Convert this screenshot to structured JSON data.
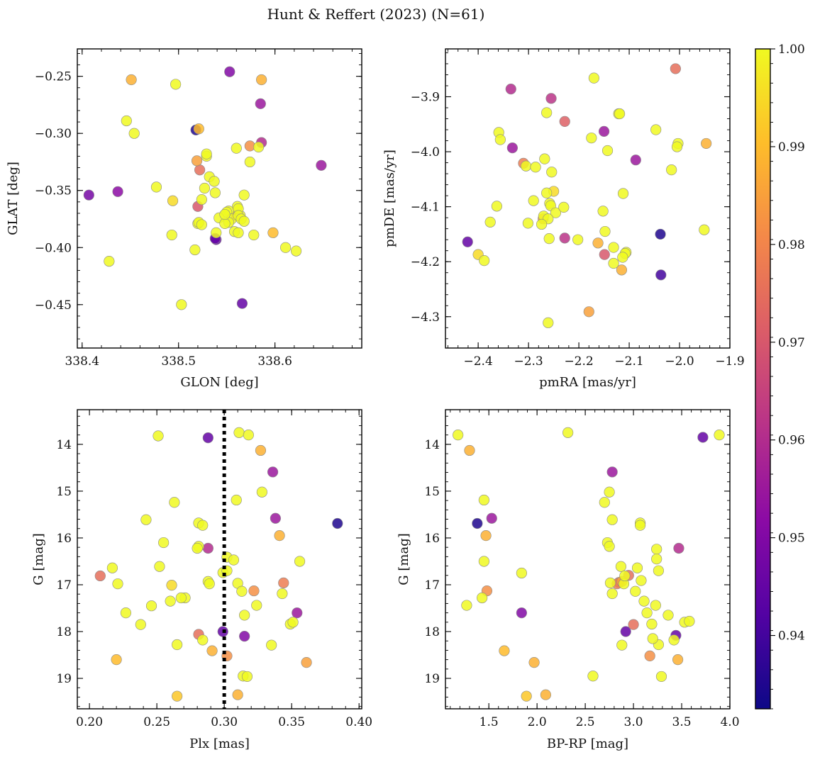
{
  "figure": {
    "title": "Hunt & Reffert (2023) (N=61)"
  },
  "colorbar": {
    "min": 0.9325,
    "max": 1.0,
    "ticks": [
      0.94,
      0.95,
      0.96,
      0.97,
      0.98,
      0.99,
      1.0
    ],
    "tick_labels": [
      "0.94",
      "0.95",
      "0.96",
      "0.97",
      "0.98",
      "0.99",
      "1.00"
    ],
    "colormap": "plasma",
    "colors": [
      "#0d0887",
      "#5302a3",
      "#8b0aa5",
      "#b83289",
      "#db5c68",
      "#f48849",
      "#febd2a",
      "#f0f921"
    ]
  },
  "chart_data": [
    {
      "type": "scatter",
      "xlabel": "GLON [deg]",
      "ylabel": "GLAT [deg]",
      "xlim": [
        338.395,
        338.69
      ],
      "ylim": [
        -0.488,
        -0.226
      ],
      "xticks": [
        338.4,
        338.5,
        338.6
      ],
      "xtick_labels": [
        "338.4",
        "338.5",
        "338.6"
      ],
      "yticks": [
        -0.25,
        -0.3,
        -0.35,
        -0.4,
        -0.45
      ],
      "ytick_labels": [
        "−0.25",
        "−0.30",
        "−0.35",
        "−0.40",
        "−0.45"
      ],
      "x": [
        338.553,
        338.451,
        338.586,
        338.497,
        338.446,
        338.585,
        338.454,
        338.518,
        338.521,
        338.586,
        338.574,
        338.529,
        338.583,
        338.519,
        338.522,
        338.529,
        338.532,
        338.574,
        338.648,
        338.527,
        338.56,
        338.524,
        338.561,
        338.564,
        338.407,
        338.437,
        338.477,
        338.537,
        338.494,
        338.52,
        338.568,
        338.538,
        338.552,
        338.562,
        338.56,
        338.55,
        338.542,
        338.555,
        338.562,
        338.565,
        338.568,
        338.552,
        338.548,
        338.558,
        338.539,
        338.539,
        338.52,
        338.521,
        338.524,
        338.548,
        338.562,
        338.578,
        338.598,
        338.611,
        338.622,
        338.538,
        338.566,
        338.493,
        338.517,
        338.428,
        338.503
      ],
      "y": [
        -0.246,
        -0.253,
        -0.253,
        -0.257,
        -0.289,
        -0.274,
        -0.3,
        -0.297,
        -0.296,
        -0.308,
        -0.311,
        -0.32,
        -0.312,
        -0.324,
        -0.332,
        -0.318,
        -0.338,
        -0.325,
        -0.328,
        -0.348,
        -0.313,
        -0.358,
        -0.364,
        -0.372,
        -0.354,
        -0.351,
        -0.347,
        -0.342,
        -0.359,
        -0.364,
        -0.354,
        -0.352,
        -0.368,
        -0.366,
        -0.372,
        -0.369,
        -0.374,
        -0.375,
        -0.372,
        -0.375,
        -0.377,
        -0.378,
        -0.379,
        -0.386,
        -0.387,
        -0.393,
        -0.379,
        -0.378,
        -0.38,
        -0.371,
        -0.387,
        -0.389,
        -0.387,
        -0.4,
        -0.403,
        -0.392,
        -0.449,
        -0.389,
        -0.402,
        -0.412,
        -0.45
      ],
      "c": [
        0.95,
        0.988,
        0.988,
        1.0,
        1.0,
        0.955,
        1.0,
        0.935,
        0.99,
        0.96,
        0.982,
        1.0,
        1.0,
        0.985,
        0.975,
        1.0,
        1.0,
        1.0,
        0.955,
        1.0,
        1.0,
        1.0,
        1.0,
        1.0,
        0.948,
        0.952,
        1.0,
        1.0,
        0.995,
        0.97,
        1.0,
        1.0,
        1.0,
        1.0,
        0.975,
        1.0,
        1.0,
        1.0,
        1.0,
        1.0,
        1.0,
        1.0,
        1.0,
        1.0,
        1.0,
        0.945,
        1.0,
        1.0,
        1.0,
        1.0,
        1.0,
        1.0,
        0.99,
        1.0,
        1.0,
        0.945,
        0.945,
        1.0,
        1.0,
        1.0,
        1.0
      ]
    },
    {
      "type": "scatter",
      "xlabel": "pmRA [mas/yr]",
      "ylabel": "pmDE [mas/yr]",
      "xlim": [
        -2.465,
        -1.9
      ],
      "ylim": [
        -4.357,
        -3.813
      ],
      "xticks": [
        -2.4,
        -2.3,
        -2.2,
        -2.1,
        -2.0,
        -1.9
      ],
      "xtick_labels": [
        "−2.4",
        "−2.3",
        "−2.2",
        "−2.1",
        "−2.0",
        "−1.9"
      ],
      "yticks": [
        -3.9,
        -4.0,
        -4.1,
        -4.2,
        -4.3
      ],
      "ytick_labels": [
        "−3.9",
        "−4.0",
        "−4.1",
        "−4.2",
        "−4.3"
      ],
      "x": [
        -2.008,
        -2.17,
        -2.335,
        -2.255,
        -2.121,
        -2.264,
        -2.119,
        -2.228,
        -2.15,
        -2.359,
        -2.356,
        -2.175,
        -2.047,
        -2.003,
        -2.005,
        -1.947,
        -2.143,
        -2.332,
        -2.268,
        -2.31,
        -2.305,
        -2.286,
        -2.254,
        -2.016,
        -2.087,
        -2.363,
        -2.264,
        -2.25,
        -2.258,
        -2.256,
        -2.29,
        -2.27,
        -2.112,
        -2.152,
        -2.246,
        -2.271,
        -2.23,
        -2.261,
        -2.274,
        -2.301,
        -2.376,
        -2.148,
        -2.228,
        -2.202,
        -2.259,
        -2.162,
        -2.131,
        -2.106,
        -2.108,
        -2.038,
        -1.951,
        -2.421,
        -2.4,
        -2.388,
        -2.149,
        -2.115,
        -2.131,
        -2.037,
        -2.113,
        -2.18,
        -2.261
      ],
      "y": [
        -3.849,
        -3.866,
        -3.886,
        -3.903,
        -3.931,
        -3.929,
        -3.931,
        -3.945,
        -3.963,
        -3.965,
        -3.978,
        -3.975,
        -3.96,
        -3.985,
        -3.991,
        -3.985,
        -3.998,
        -3.993,
        -4.013,
        -4.021,
        -4.026,
        -4.028,
        -4.037,
        -4.033,
        -4.015,
        -4.099,
        -4.075,
        -4.072,
        -4.094,
        -4.098,
        -4.089,
        -4.117,
        -4.076,
        -4.108,
        -4.111,
        -4.122,
        -4.101,
        -4.122,
        -4.132,
        -4.13,
        -4.128,
        -4.145,
        -4.157,
        -4.16,
        -4.158,
        -4.166,
        -4.174,
        -4.183,
        -4.185,
        -4.15,
        -4.142,
        -4.164,
        -4.187,
        -4.198,
        -4.187,
        -4.215,
        -4.203,
        -4.224,
        -4.192,
        -4.291,
        -4.311
      ],
      "c": [
        0.975,
        1.0,
        0.96,
        0.962,
        1.0,
        1.0,
        1.0,
        0.972,
        0.955,
        1.0,
        1.0,
        1.0,
        1.0,
        1.0,
        1.0,
        0.988,
        1.0,
        0.955,
        1.0,
        0.978,
        1.0,
        1.0,
        1.0,
        1.0,
        0.955,
        1.0,
        1.0,
        0.995,
        1.0,
        1.0,
        1.0,
        1.0,
        1.0,
        1.0,
        1.0,
        0.985,
        1.0,
        1.0,
        1.0,
        1.0,
        1.0,
        1.0,
        0.962,
        1.0,
        1.0,
        0.988,
        1.0,
        1.0,
        1.0,
        0.935,
        1.0,
        0.945,
        0.995,
        1.0,
        0.97,
        0.988,
        1.0,
        0.94,
        1.0,
        0.985,
        1.0
      ]
    },
    {
      "type": "scatter",
      "xlabel": "Plx [mas]",
      "ylabel": "G [mag]",
      "xlim": [
        0.191,
        0.402
      ],
      "ylim": [
        19.65,
        13.26
      ],
      "vline": 0.3,
      "xticks": [
        0.2,
        0.25,
        0.3,
        0.35,
        0.4
      ],
      "xtick_labels": [
        "0.20",
        "0.25",
        "0.30",
        "0.35",
        "0.40"
      ],
      "yticks": [
        14,
        15,
        16,
        17,
        18,
        19
      ],
      "ytick_labels": [
        "14",
        "15",
        "16",
        "17",
        "18",
        "19"
      ],
      "x": [
        0.251,
        0.288,
        0.311,
        0.318,
        0.327,
        0.336,
        0.328,
        0.309,
        0.263,
        0.242,
        0.281,
        0.284,
        0.338,
        0.384,
        0.341,
        0.255,
        0.281,
        0.28,
        0.288,
        0.302,
        0.217,
        0.252,
        0.307,
        0.356,
        0.208,
        0.221,
        0.299,
        0.302,
        0.288,
        0.289,
        0.271,
        0.261,
        0.31,
        0.313,
        0.322,
        0.343,
        0.344,
        0.227,
        0.246,
        0.26,
        0.268,
        0.324,
        0.315,
        0.238,
        0.281,
        0.265,
        0.354,
        0.349,
        0.351,
        0.299,
        0.284,
        0.315,
        0.335,
        0.291,
        0.302,
        0.22,
        0.314,
        0.317,
        0.361,
        0.265,
        0.31
      ],
      "y": [
        13.82,
        13.86,
        13.75,
        13.8,
        14.13,
        14.59,
        15.02,
        15.19,
        15.24,
        15.61,
        15.68,
        15.73,
        15.58,
        15.69,
        15.95,
        16.1,
        16.18,
        16.22,
        16.22,
        16.41,
        16.64,
        16.61,
        16.47,
        16.5,
        16.81,
        16.98,
        16.74,
        16.7,
        16.93,
        16.98,
        17.28,
        17.01,
        16.97,
        17.14,
        17.13,
        17.19,
        16.96,
        17.6,
        17.45,
        17.35,
        17.28,
        17.44,
        17.65,
        17.85,
        18.06,
        18.28,
        17.6,
        17.84,
        17.8,
        18.0,
        18.18,
        18.1,
        18.29,
        18.41,
        18.52,
        18.6,
        18.95,
        18.96,
        18.66,
        19.38,
        19.35
      ],
      "c": [
        1.0,
        0.945,
        1.0,
        1.0,
        0.988,
        0.955,
        1.0,
        1.0,
        1.0,
        1.0,
        1.0,
        1.0,
        0.955,
        0.935,
        0.988,
        1.0,
        1.0,
        1.0,
        0.96,
        1.0,
        1.0,
        1.0,
        1.0,
        1.0,
        0.975,
        1.0,
        1.0,
        1.0,
        1.0,
        1.0,
        1.0,
        0.995,
        1.0,
        1.0,
        0.982,
        1.0,
        0.978,
        1.0,
        1.0,
        1.0,
        1.0,
        1.0,
        1.0,
        1.0,
        0.975,
        1.0,
        0.955,
        1.0,
        1.0,
        0.945,
        1.0,
        0.95,
        1.0,
        0.988,
        0.982,
        0.99,
        1.0,
        1.0,
        0.985,
        0.992,
        0.988
      ]
    },
    {
      "type": "scatter",
      "xlabel": "BP-RP [mag]",
      "ylabel": "G [mag]",
      "xlim": [
        1.05,
        4.0
      ],
      "ylim": [
        19.65,
        13.26
      ],
      "xticks": [
        1.5,
        2.0,
        2.5,
        3.0,
        3.5,
        4.0
      ],
      "xtick_labels": [
        "1.5",
        "2.0",
        "2.5",
        "3.0",
        "3.5",
        "4.0"
      ],
      "yticks": [
        14,
        15,
        16,
        17,
        18,
        19
      ],
      "ytick_labels": [
        "14",
        "15",
        "16",
        "17",
        "18",
        "19"
      ],
      "x": [
        1.18,
        1.3,
        2.32,
        3.72,
        3.89,
        2.78,
        2.75,
        2.7,
        1.45,
        1.53,
        1.38,
        2.78,
        3.07,
        3.07,
        1.47,
        2.73,
        2.75,
        1.45,
        3.24,
        3.47,
        2.87,
        3.04,
        3.24,
        1.84,
        1.27,
        1.43,
        1.48,
        2.76,
        2.83,
        2.88,
        2.85,
        2.9,
        2.91,
        2.95,
        3.08,
        3.26,
        2.78,
        3.02,
        3.11,
        3.23,
        3.14,
        1.84,
        3.36,
        3.53,
        2.92,
        3.0,
        3.19,
        3.26,
        3.42,
        3.44,
        2.88,
        1.66,
        3.17,
        3.46,
        1.97,
        2.58,
        3.29,
        1.89,
        2.09,
        3.58,
        3.2
      ],
      "y": [
        13.8,
        14.13,
        13.75,
        13.85,
        13.8,
        14.59,
        15.02,
        15.24,
        15.19,
        15.58,
        15.69,
        15.61,
        15.68,
        15.73,
        15.95,
        16.1,
        16.18,
        16.5,
        16.24,
        16.22,
        16.61,
        16.64,
        16.45,
        16.75,
        17.44,
        17.28,
        17.13,
        16.96,
        16.98,
        16.93,
        16.95,
        16.98,
        16.81,
        16.8,
        16.91,
        16.7,
        17.19,
        17.14,
        17.35,
        17.44,
        17.6,
        17.6,
        17.65,
        17.8,
        18.0,
        17.85,
        17.84,
        18.28,
        18.18,
        18.08,
        18.29,
        18.41,
        18.52,
        18.6,
        18.66,
        18.95,
        18.96,
        19.38,
        19.35,
        17.78,
        18.15
      ],
      "c": [
        1.0,
        0.988,
        1.0,
        0.945,
        1.0,
        0.955,
        1.0,
        1.0,
        1.0,
        0.955,
        0.935,
        1.0,
        1.0,
        1.0,
        0.988,
        1.0,
        1.0,
        1.0,
        1.0,
        0.96,
        1.0,
        1.0,
        1.0,
        1.0,
        1.0,
        1.0,
        0.982,
        1.0,
        0.978,
        0.985,
        0.975,
        1.0,
        1.0,
        0.975,
        1.0,
        1.0,
        1.0,
        1.0,
        1.0,
        1.0,
        1.0,
        0.95,
        1.0,
        1.0,
        0.945,
        0.975,
        1.0,
        1.0,
        1.0,
        0.945,
        1.0,
        0.99,
        0.982,
        0.988,
        0.988,
        1.0,
        1.0,
        0.992,
        0.988,
        1.0,
        1.0
      ]
    }
  ]
}
